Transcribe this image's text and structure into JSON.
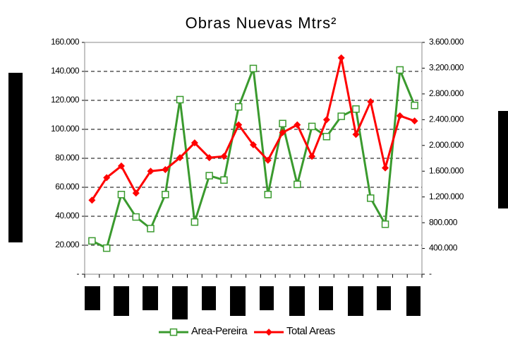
{
  "chart_data": {
    "type": "line",
    "title": "Obras Nuevas Mtrs²",
    "categories": [
      null,
      null,
      null,
      null,
      null,
      null,
      null,
      null,
      null,
      null,
      null,
      null,
      null,
      null,
      null,
      null,
      null,
      null,
      null,
      null,
      null,
      null,
      null
    ],
    "series": [
      {
        "name": "Area-Pereira",
        "color": "#3a9a2e",
        "axis": "y",
        "values": [
          23,
          18,
          55,
          39.5,
          31.5,
          55,
          120.5,
          36,
          68,
          65,
          115.5,
          142,
          55,
          104,
          62,
          102,
          95,
          109,
          114,
          52.5,
          34.5,
          141,
          116.5
        ]
      },
      {
        "name": "Total Areas",
        "color": "#ff0000",
        "axis": "y2",
        "values": [
          1150000,
          1500000,
          1680000,
          1260000,
          1600000,
          1625000,
          1810000,
          2040000,
          1810000,
          1830000,
          2320000,
          2010000,
          1770000,
          2200000,
          2320000,
          1830000,
          2400000,
          3360000,
          2170000,
          2680000,
          1650000,
          2460000,
          2380000
        ]
      }
    ],
    "ylim": [
      0,
      160000
    ],
    "yticks": [
      {
        "value": 0,
        "label": "-"
      },
      {
        "value": 20,
        "label": "20.000"
      },
      {
        "value": 40,
        "label": "40.000"
      },
      {
        "value": 60,
        "label": "60.000"
      },
      {
        "value": 80,
        "label": "80.000"
      },
      {
        "value": 100,
        "label": "100.000"
      },
      {
        "value": 120,
        "label": "120.000"
      },
      {
        "value": 140,
        "label": "140.000"
      },
      {
        "value": 160,
        "label": "160.000"
      }
    ],
    "y2lim": [
      0,
      3600000
    ],
    "y2ticks": [
      {
        "value": 0,
        "label": "-"
      },
      {
        "value": 400000,
        "label": "400.000"
      },
      {
        "value": 800000,
        "label": "800.000"
      },
      {
        "value": 1200000,
        "label": "1.200.000"
      },
      {
        "value": 1600000,
        "label": "1.600.000"
      },
      {
        "value": 2000000,
        "label": "2.000.000"
      },
      {
        "value": 2400000,
        "label": "2.400.000"
      },
      {
        "value": 2800000,
        "label": "2.800.000"
      },
      {
        "value": 3200000,
        "label": "3.200.000"
      },
      {
        "value": 3600000,
        "label": "3.600.000"
      }
    ],
    "grid": true
  }
}
